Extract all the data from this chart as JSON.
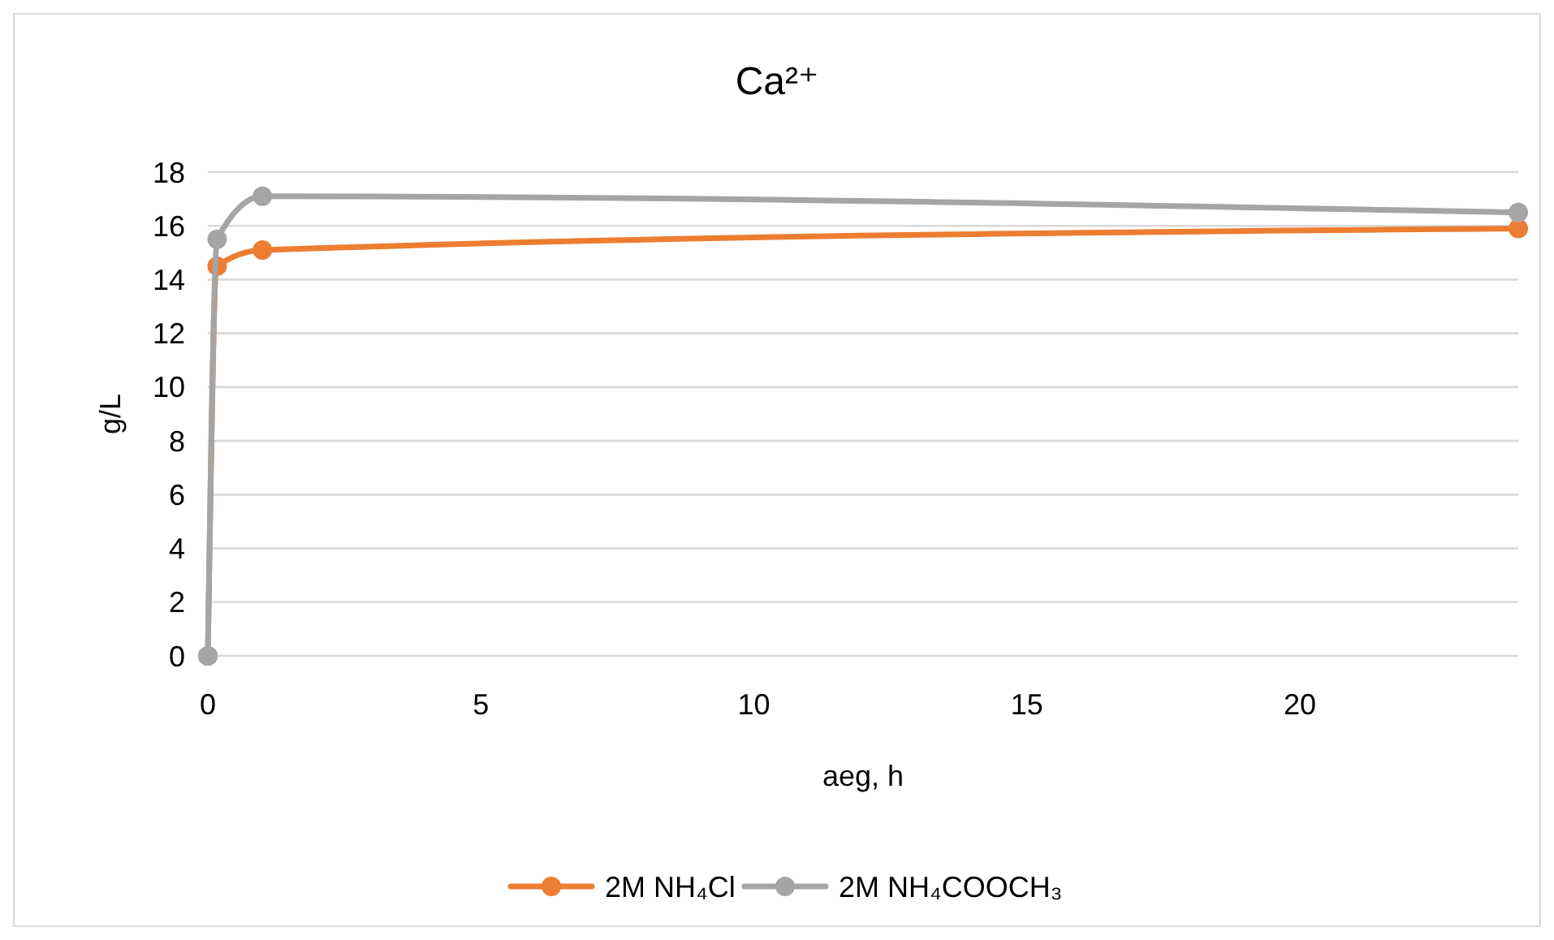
{
  "chart_data": {
    "type": "line",
    "title": "Ca²⁺",
    "xlabel": "aeg, h",
    "ylabel": "g/L",
    "xlim": [
      0,
      24
    ],
    "xticks": [
      0,
      5,
      10,
      15,
      20
    ],
    "ylim": [
      0,
      18
    ],
    "yticks": [
      0,
      2,
      4,
      6,
      8,
      10,
      12,
      14,
      16,
      18
    ],
    "grid": "y",
    "legend": "bottom",
    "marker": "circle",
    "x": [
      0,
      0.17,
      1,
      24
    ],
    "series": [
      {
        "name": "2M NH₄Cl",
        "color": "#ed7d31",
        "values": [
          0,
          14.5,
          15.1,
          15.9
        ]
      },
      {
        "name": "2M NH₄COOCH₃",
        "color": "#a5a5a5",
        "values": [
          0,
          15.5,
          17.1,
          16.5
        ]
      }
    ]
  }
}
